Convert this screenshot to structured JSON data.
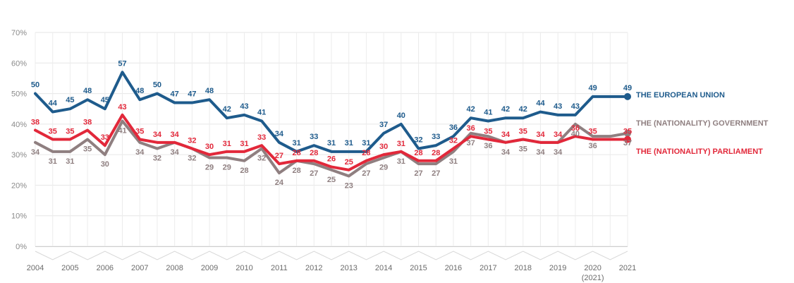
{
  "chart_data": {
    "type": "line",
    "title": "",
    "xlabel": "",
    "ylabel": "",
    "ylim": [
      0,
      70
    ],
    "yticks": [
      "0%",
      "10%",
      "20%",
      "30%",
      "40%",
      "50%",
      "60%",
      "70%"
    ],
    "grid": true,
    "legend": "right-end labels",
    "x_labels": [
      {
        "label": "2004",
        "pos": 0
      },
      {
        "label": "2005",
        "pos": 1
      },
      {
        "label": "2006",
        "pos": 2
      },
      {
        "label": "2007",
        "pos": 3
      },
      {
        "label": "2008",
        "pos": 4
      },
      {
        "label": "2009",
        "pos": 5
      },
      {
        "label": "2010",
        "pos": 6
      },
      {
        "label": "2011",
        "pos": 7
      },
      {
        "label": "2012",
        "pos": 8
      },
      {
        "label": "2013",
        "pos": 9
      },
      {
        "label": "2014",
        "pos": 10
      },
      {
        "label": "2015",
        "pos": 11
      },
      {
        "label": "2016",
        "pos": 12
      },
      {
        "label": "2017",
        "pos": 13
      },
      {
        "label": "2018",
        "pos": 14
      },
      {
        "label": "2019",
        "pos": 15
      },
      {
        "label": "2020",
        "sublabel": "(2021)",
        "pos": 16
      },
      {
        "label": "2021",
        "pos": 17
      }
    ],
    "x": [
      0,
      0.5,
      1,
      1.5,
      2,
      2.5,
      3,
      3.5,
      4,
      4.5,
      5,
      5.5,
      6,
      6.5,
      7,
      7.5,
      8,
      8.5,
      9,
      9.5,
      10,
      10.5,
      11,
      11.5,
      12,
      12.5,
      13,
      13.5,
      14,
      14.5,
      15,
      15.5,
      16,
      16.5,
      17
    ],
    "series": [
      {
        "name": "THE EUROPEAN UNION",
        "color": "#1e5b8c",
        "values": [
          50,
          44,
          45,
          48,
          45,
          57,
          48,
          50,
          47,
          47,
          48,
          42,
          43,
          41,
          34,
          31,
          33,
          31,
          31,
          31,
          37,
          40,
          32,
          33,
          36,
          42,
          41,
          42,
          42,
          44,
          43,
          43,
          49,
          49,
          49
        ],
        "labels": [
          "50",
          "44",
          "45",
          "48",
          "45",
          "57",
          "48",
          "50",
          "47",
          "47",
          "48",
          "42",
          "43",
          "41",
          "34",
          "31",
          "33",
          "31",
          "31",
          "31",
          "37",
          "40",
          "32",
          "33",
          "36",
          "42",
          "41",
          "42",
          "42",
          "44",
          "43",
          "43",
          "49",
          "",
          "49"
        ]
      },
      {
        "name": "THE (NATIONALITY) GOVERNMENT",
        "color": "#8f7f80",
        "values": [
          34,
          31,
          31,
          35,
          30,
          41,
          34,
          32,
          34,
          32,
          29,
          29,
          28,
          32,
          24,
          28,
          27,
          25,
          23,
          27,
          29,
          31,
          27,
          27,
          31,
          37,
          36,
          34,
          35,
          34,
          34,
          40,
          36,
          36,
          37
        ],
        "labels": [
          "34",
          "31",
          "31",
          "35",
          "30",
          "41",
          "34",
          "32",
          "34",
          "32",
          "29",
          "29",
          "28",
          "32",
          "24",
          "28",
          "27",
          "25",
          "23",
          "27",
          "29",
          "31",
          "27",
          "27",
          "31",
          "37",
          "36",
          "34",
          "35",
          "34",
          "34",
          "40",
          "36",
          "",
          "37"
        ]
      },
      {
        "name": "THE (NATIONALITY) PARLIAMENT",
        "color": "#e2283a",
        "values": [
          38,
          35,
          35,
          38,
          33,
          43,
          35,
          34,
          34,
          32,
          30,
          31,
          31,
          33,
          27,
          28,
          28,
          26,
          25,
          28,
          30,
          31,
          28,
          28,
          32,
          36,
          35,
          34,
          35,
          34,
          34,
          36,
          35,
          35,
          35
        ],
        "labels": [
          "38",
          "35",
          "35",
          "38",
          "33",
          "43",
          "35",
          "34",
          "34",
          "32",
          "30",
          "31",
          "31",
          "33",
          "27",
          "28",
          "28",
          "26",
          "25",
          "28",
          "30",
          "31",
          "28",
          "28",
          "32",
          "36",
          "35",
          "34",
          "35",
          "34",
          "34",
          "36",
          "35",
          "",
          "35"
        ]
      }
    ]
  }
}
